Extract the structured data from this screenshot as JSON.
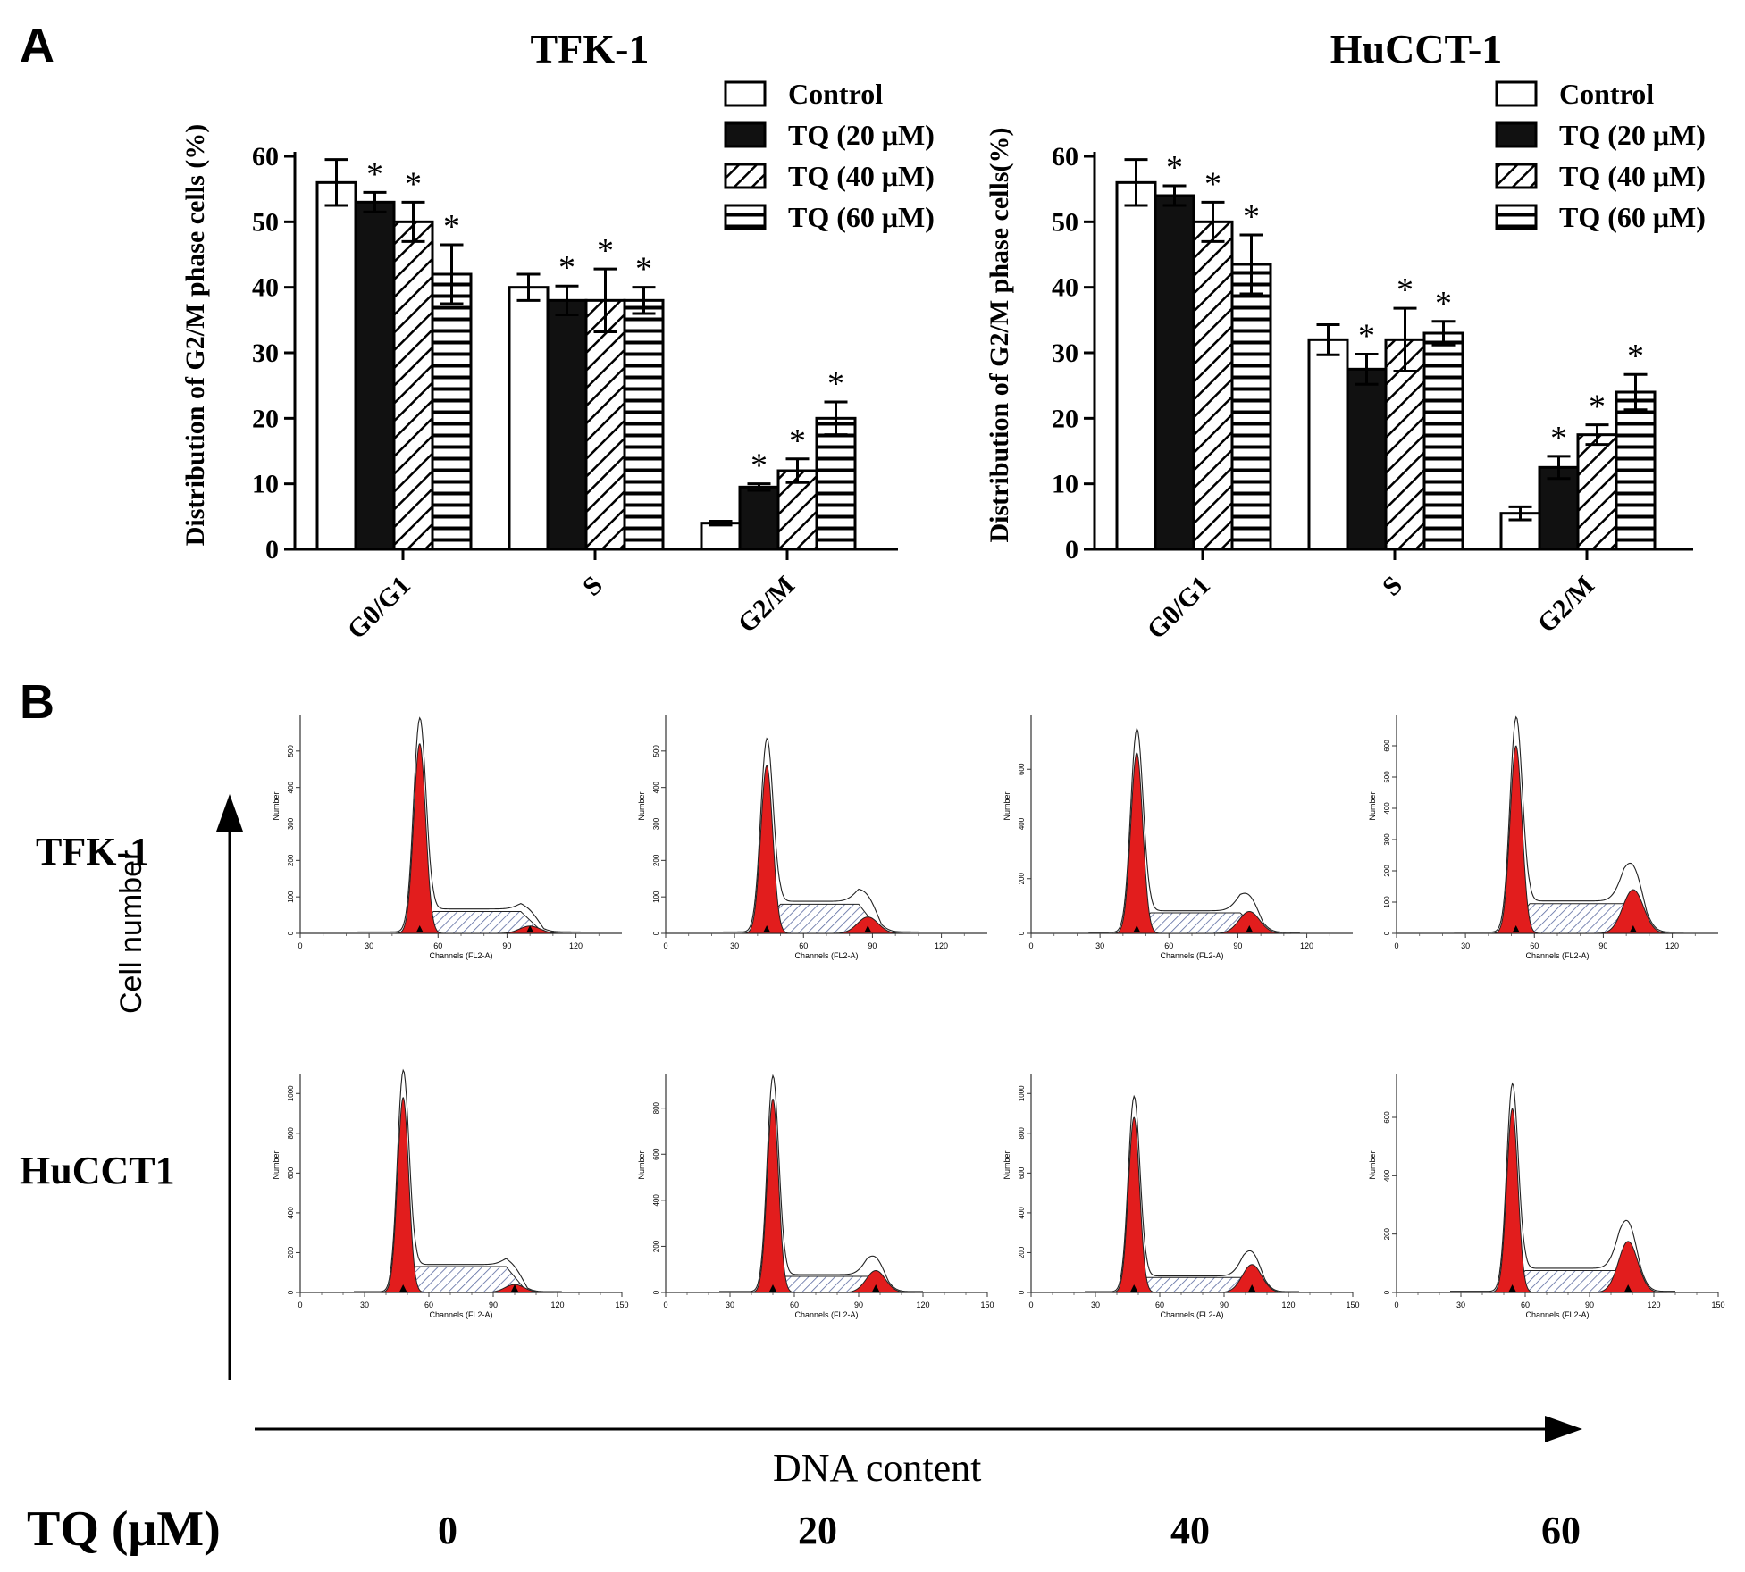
{
  "panels": {
    "a": "A",
    "b": "B"
  },
  "chart_data": [
    {
      "type": "bar",
      "title": "TFK-1",
      "ylabel": "Distribution of G2/M phase cells (%)",
      "xlabel": "",
      "ylim": [
        0,
        60
      ],
      "yticks": [
        0,
        10,
        20,
        30,
        40,
        50,
        60
      ],
      "categories": [
        "G0/G1",
        "S",
        "G2/M"
      ],
      "legend_position": "top-right",
      "series": [
        {
          "name": "Control",
          "pattern": "white",
          "values": [
            56,
            40,
            4
          ],
          "errors": [
            3.5,
            2,
            0.3
          ],
          "sig": [
            false,
            false,
            false
          ]
        },
        {
          "name": "TQ (20 μM)",
          "pattern": "black",
          "values": [
            53,
            38,
            9.5
          ],
          "errors": [
            1.5,
            2.2,
            0.5
          ],
          "sig": [
            true,
            true,
            true
          ]
        },
        {
          "name": "TQ (40 μM)",
          "pattern": "diagonal",
          "values": [
            50,
            38,
            12
          ],
          "errors": [
            3,
            4.8,
            1.8
          ],
          "sig": [
            true,
            true,
            true
          ]
        },
        {
          "name": "TQ (60 μM)",
          "pattern": "horizontal",
          "values": [
            42,
            38,
            20
          ],
          "errors": [
            4.5,
            2,
            2.5
          ],
          "sig": [
            true,
            true,
            true
          ]
        }
      ]
    },
    {
      "type": "bar",
      "title": "HuCCT-1",
      "ylabel": "Distribution of G2/M phase cells(%)",
      "xlabel": "",
      "ylim": [
        0,
        60
      ],
      "yticks": [
        0,
        10,
        20,
        30,
        40,
        50,
        60
      ],
      "categories": [
        "G0/G1",
        "S",
        "G2/M"
      ],
      "legend_position": "top-right",
      "series": [
        {
          "name": "Control",
          "pattern": "white",
          "values": [
            56,
            32,
            5.5
          ],
          "errors": [
            3.5,
            2.3,
            1
          ],
          "sig": [
            false,
            false,
            false
          ]
        },
        {
          "name": "TQ (20 μM)",
          "pattern": "black",
          "values": [
            54,
            27.5,
            12.5
          ],
          "errors": [
            1.5,
            2.3,
            1.7
          ],
          "sig": [
            true,
            true,
            true
          ]
        },
        {
          "name": "TQ (40 μM)",
          "pattern": "diagonal",
          "values": [
            50,
            32,
            17.5
          ],
          "errors": [
            3,
            4.8,
            1.5
          ],
          "sig": [
            true,
            true,
            true
          ]
        },
        {
          "name": "TQ (60 μM)",
          "pattern": "horizontal",
          "values": [
            43.5,
            33,
            24
          ],
          "errors": [
            4.5,
            1.8,
            2.7
          ],
          "sig": [
            true,
            true,
            true
          ]
        }
      ]
    }
  ],
  "flow": {
    "rows": [
      "TFK-1",
      "HuCCT1"
    ],
    "y_axis_word": "Cell number",
    "x_axis_word": "DNA content",
    "tq_label": "TQ (μM)",
    "concentrations": [
      "0",
      "20",
      "40",
      "60"
    ],
    "plot_ylabel": "Number",
    "plot_xlabel": "Channels (FL2-A)",
    "plots": [
      {
        "xmax": 140,
        "xticks": [
          0,
          30,
          60,
          90,
          120
        ],
        "ymax": 600,
        "yticks": [
          0,
          100,
          200,
          300,
          400,
          500
        ],
        "g1": 52,
        "g1h": 520,
        "g2": 100,
        "g2h": 20,
        "s": 60
      },
      {
        "xmax": 140,
        "xticks": [
          0,
          30,
          60,
          90,
          120
        ],
        "ymax": 600,
        "yticks": [
          0,
          100,
          200,
          300,
          400,
          500
        ],
        "g1": 44,
        "g1h": 460,
        "g2": 88,
        "g2h": 45,
        "s": 80
      },
      {
        "xmax": 140,
        "xticks": [
          0,
          30,
          60,
          90,
          120
        ],
        "ymax": 800,
        "yticks": [
          0,
          200,
          400,
          600
        ],
        "g1": 46,
        "g1h": 660,
        "g2": 95,
        "g2h": 80,
        "s": 75
      },
      {
        "xmax": 140,
        "xticks": [
          0,
          30,
          60,
          90,
          120
        ],
        "ymax": 700,
        "yticks": [
          0,
          100,
          200,
          300,
          400,
          500,
          600
        ],
        "g1": 52,
        "g1h": 600,
        "g2": 103,
        "g2h": 140,
        "s": 95
      },
      {
        "xmax": 150,
        "xticks": [
          0,
          30,
          60,
          90,
          120,
          150
        ],
        "ymax": 1100,
        "yticks": [
          0,
          200,
          400,
          600,
          800,
          1000
        ],
        "g1": 48,
        "g1h": 980,
        "g2": 100,
        "g2h": 40,
        "s": 130
      },
      {
        "xmax": 150,
        "xticks": [
          0,
          30,
          60,
          90,
          120,
          150
        ],
        "ymax": 950,
        "yticks": [
          0,
          200,
          400,
          600,
          800
        ],
        "g1": 50,
        "g1h": 840,
        "g2": 98,
        "g2h": 95,
        "s": 70
      },
      {
        "xmax": 150,
        "xticks": [
          0,
          30,
          60,
          90,
          120,
          150
        ],
        "ymax": 1100,
        "yticks": [
          0,
          200,
          400,
          600,
          800,
          1000
        ],
        "g1": 48,
        "g1h": 880,
        "g2": 103,
        "g2h": 140,
        "s": 75
      },
      {
        "xmax": 150,
        "xticks": [
          0,
          30,
          60,
          90,
          120,
          150
        ],
        "ymax": 750,
        "yticks": [
          0,
          200,
          400,
          600
        ],
        "g1": 54,
        "g1h": 630,
        "g2": 108,
        "g2h": 175,
        "s": 75
      }
    ]
  }
}
